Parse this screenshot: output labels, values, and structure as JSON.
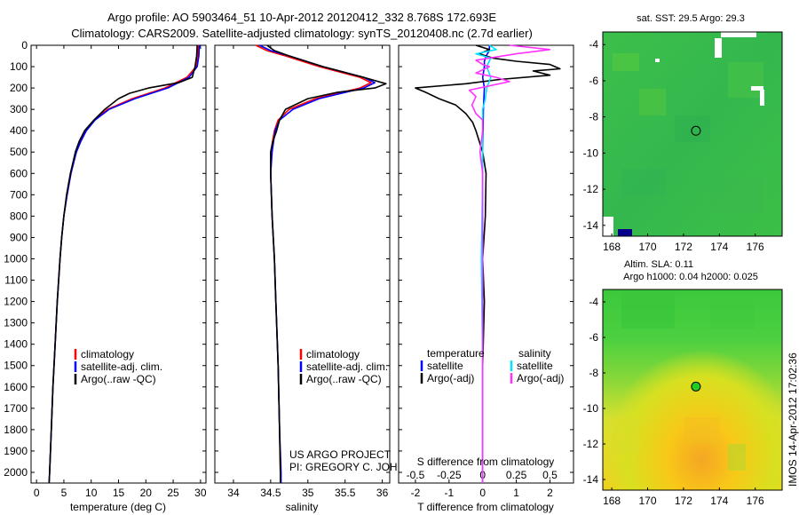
{
  "title_line1": "Argo profile: AO 5903464_51 10-Apr-2012 20120412_332 8.768S 172.693E",
  "title_line2": "Climatology: CARS2009. Satellite-adjusted climatology: synTS_20120408.nc (2.7d earlier)",
  "credit_project": "US ARGO PROJECT",
  "credit_pi": "PI: GREGORY C. JOHNSON",
  "side_stamp": "IMOS 14-Apr-2012 17:02:36",
  "colors": {
    "clim": "#ff0000",
    "sat": "#0000ff",
    "argo": "#000000",
    "sat_s": "#00e5ff",
    "argo_s": "#ff33ff",
    "map_low": "#22cc22",
    "map_high": "#ffd000"
  },
  "chart_data": [
    {
      "type": "line",
      "panel": "temperature",
      "xlabel": "temperature (deg C)",
      "ylabel": "",
      "xlim": [
        -1,
        31
      ],
      "ylim": [
        2050,
        0
      ],
      "xticks": [
        0,
        5,
        10,
        15,
        20,
        25,
        30
      ],
      "yticks": [
        0,
        100,
        200,
        300,
        400,
        500,
        600,
        700,
        800,
        900,
        1000,
        1100,
        1200,
        1300,
        1400,
        1500,
        1600,
        1700,
        1800,
        1900,
        2000
      ],
      "legend": [
        "climatology",
        "satellite-adj. clim.",
        "Argo(..raw -QC)"
      ],
      "series": [
        {
          "name": "climatology",
          "color": "#ff0000",
          "depth": [
            0,
            50,
            100,
            150,
            200,
            250,
            300,
            350,
            400,
            450,
            500,
            600,
            700,
            800,
            900,
            1000,
            1200,
            1400,
            1600,
            1800,
            2000,
            2050
          ],
          "values": [
            29.6,
            29.5,
            29.2,
            27.5,
            23.5,
            17.5,
            13.0,
            10.5,
            9.0,
            8.0,
            7.2,
            6.3,
            5.6,
            5.0,
            4.6,
            4.3,
            3.8,
            3.4,
            3.0,
            2.7,
            2.4,
            2.3
          ]
        },
        {
          "name": "satellite-adj. clim.",
          "color": "#0000ff",
          "depth": [
            0,
            50,
            100,
            150,
            200,
            250,
            300,
            350,
            400,
            450,
            500,
            600,
            700,
            800,
            900,
            1000,
            1200,
            1400,
            1600,
            1800,
            2000,
            2050
          ],
          "values": [
            29.8,
            29.7,
            29.4,
            27.9,
            24.0,
            18.0,
            13.3,
            10.7,
            9.1,
            8.1,
            7.3,
            6.3,
            5.6,
            5.0,
            4.6,
            4.3,
            3.8,
            3.4,
            3.0,
            2.7,
            2.4,
            2.3
          ]
        },
        {
          "name": "Argo(..raw -QC)",
          "color": "#000000",
          "depth": [
            0,
            50,
            100,
            150,
            175,
            200,
            225,
            250,
            300,
            350,
            400,
            450,
            500,
            600,
            700,
            800,
            900,
            1000,
            1200,
            1400,
            1600,
            1800,
            2000,
            2050
          ],
          "values": [
            29.4,
            29.3,
            29.0,
            28.5,
            26.0,
            20.5,
            17.0,
            15.0,
            12.5,
            10.5,
            8.8,
            7.8,
            7.1,
            6.2,
            5.5,
            5.0,
            4.6,
            4.3,
            3.8,
            3.4,
            3.0,
            2.7,
            2.4,
            2.3
          ]
        }
      ]
    },
    {
      "type": "line",
      "panel": "salinity",
      "xlabel": "salinity",
      "xlim": [
        33.75,
        36.1
      ],
      "ylim": [
        2050,
        0
      ],
      "xticks": [
        34,
        34.5,
        35,
        35.5,
        36
      ],
      "xticklabels": [
        "34",
        "34.5",
        "35",
        "35.5",
        "36"
      ],
      "legend": [
        "climatology",
        "satellite-adj. clim.",
        "Argo(..raw -QC)"
      ],
      "series": [
        {
          "name": "climatology",
          "color": "#ff0000",
          "depth": [
            0,
            25,
            50,
            100,
            150,
            175,
            200,
            250,
            300,
            350,
            400,
            500,
            600,
            800,
            1000,
            1200,
            1500,
            1800,
            2000,
            2050
          ],
          "values": [
            34.3,
            34.45,
            34.7,
            35.15,
            35.7,
            35.85,
            35.7,
            35.1,
            34.75,
            34.6,
            34.55,
            34.5,
            34.5,
            34.52,
            34.55,
            34.57,
            34.6,
            34.62,
            34.63,
            34.63
          ]
        },
        {
          "name": "satellite-adj. clim.",
          "color": "#0000ff",
          "depth": [
            0,
            25,
            50,
            100,
            150,
            175,
            200,
            250,
            300,
            350,
            400,
            500,
            600,
            800,
            1000,
            1200,
            1500,
            1800,
            2000,
            2050
          ],
          "values": [
            34.35,
            34.5,
            34.75,
            35.2,
            35.75,
            35.9,
            35.75,
            35.15,
            34.8,
            34.62,
            34.56,
            34.52,
            34.5,
            34.52,
            34.55,
            34.57,
            34.6,
            34.62,
            34.64,
            34.64
          ]
        },
        {
          "name": "Argo(..raw -QC)",
          "color": "#000000",
          "depth": [
            0,
            25,
            50,
            100,
            150,
            180,
            200,
            220,
            250,
            300,
            350,
            400,
            450,
            500,
            600,
            800,
            1000,
            1200,
            1500,
            1800,
            2000,
            2050
          ],
          "values": [
            34.45,
            34.55,
            34.75,
            35.2,
            35.75,
            36.05,
            35.9,
            35.4,
            35.0,
            34.7,
            34.62,
            34.58,
            34.53,
            34.5,
            34.5,
            34.52,
            34.55,
            34.57,
            34.6,
            34.62,
            34.63,
            34.63
          ]
        }
      ]
    },
    {
      "type": "line",
      "panel": "difference",
      "xlabel_bottom": "T difference from climatology",
      "xlabel_top_overlay": "S difference from climatology",
      "xlim": [
        -2.5,
        2.7
      ],
      "ylim": [
        2050,
        0
      ],
      "xticks_t": [
        -2,
        -1,
        0,
        1,
        2
      ],
      "xticks_s": [
        -0.5,
        -0.25,
        0,
        0.25,
        0.5
      ],
      "legend_temperature_title": "temperature",
      "legend_salinity_title": "salinity",
      "legend": [
        "satellite",
        "Argo(-adj)",
        "satellite",
        "Argo(-adj)"
      ],
      "series": [
        {
          "name": "T satellite",
          "color": "#0000ff",
          "depth": [
            0,
            25,
            50,
            75,
            100,
            150,
            200,
            300,
            500,
            1000,
            2000,
            2050
          ],
          "values": [
            0.2,
            0.2,
            0.1,
            0.05,
            0.05,
            0.0,
            0.05,
            0.02,
            0.0,
            0.0,
            0.0,
            0.0
          ]
        },
        {
          "name": "T Argo(-adj)",
          "color": "#000000",
          "depth": [
            0,
            20,
            40,
            60,
            75,
            90,
            110,
            120,
            140,
            160,
            180,
            200,
            220,
            250,
            280,
            320,
            360,
            400,
            500,
            600,
            800,
            1000,
            1200,
            1500,
            1800,
            2000,
            2050
          ],
          "values": [
            -0.2,
            0.2,
            -0.1,
            0.3,
            1.0,
            2.0,
            2.3,
            1.5,
            2.0,
            0.5,
            -0.5,
            -2.0,
            -1.7,
            -1.3,
            -0.8,
            -0.5,
            -0.3,
            -0.2,
            0.0,
            0.1,
            0.08,
            0.0,
            0.05,
            0.0,
            0.0,
            0.0,
            0.0
          ]
        },
        {
          "name": "S satellite",
          "color": "#00e5ff",
          "depth": [
            0,
            20,
            40,
            60,
            100,
            150,
            200,
            250,
            300,
            400,
            600,
            1000,
            1500,
            2050
          ],
          "values": [
            0.05,
            0.1,
            -0.05,
            0.06,
            0.03,
            0.06,
            0.03,
            0.02,
            0.0,
            0.0,
            0.0,
            -0.01,
            0.0,
            0.0
          ]
        },
        {
          "name": "S Argo(-adj)",
          "color": "#ff33ff",
          "depth": [
            0,
            20,
            40,
            55,
            70,
            90,
            100,
            130,
            150,
            170,
            190,
            210,
            240,
            280,
            320,
            350,
            400,
            500,
            600,
            800,
            1000,
            2050
          ],
          "values": [
            0.2,
            0.5,
            0.25,
            0.1,
            -0.05,
            0.0,
            0.05,
            -0.05,
            0.1,
            0.2,
            0.05,
            -0.1,
            -0.05,
            -0.08,
            -0.05,
            0.0,
            0.0,
            -0.02,
            0.0,
            0.0,
            0.0,
            0.0
          ]
        }
      ]
    },
    {
      "type": "heatmap",
      "panel": "sst-map",
      "title": "sat. SST: 29.5 Argo: 29.3",
      "xlim": [
        167.5,
        177.5
      ],
      "ylim": [
        -14.6,
        -3.3
      ],
      "xticks": [
        168,
        170,
        172,
        174,
        176
      ],
      "yticks": [
        -4,
        -6,
        -8,
        -10,
        -12,
        -14
      ],
      "profile_location": [
        172.693,
        -8.768
      ]
    },
    {
      "type": "heatmap",
      "panel": "sla-map",
      "title_line1": "Altim. SLA: 0.11",
      "title_line2": "Argo h1000: 0.04 h2000: 0.025",
      "xlim": [
        167.5,
        177.5
      ],
      "ylim": [
        -14.6,
        -3.3
      ],
      "xticks": [
        168,
        170,
        172,
        174,
        176
      ],
      "yticks": [
        -4,
        -6,
        -8,
        -10,
        -12,
        -14
      ],
      "profile_location": [
        172.693,
        -8.768
      ]
    }
  ]
}
